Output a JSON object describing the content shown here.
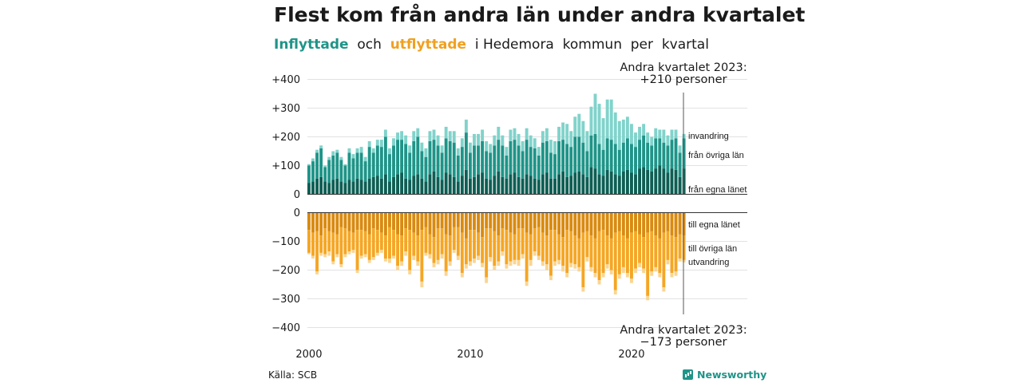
{
  "title": "Flest kom från andra län under andra kvartalet",
  "subtitle": {
    "part1": "Inflyttade",
    "part2": "och",
    "part3": "utflyttade",
    "part4": "i Hedemora  kommun  per  kvartal"
  },
  "annotations": {
    "top_line1": "Andra kvartalet 2023:",
    "top_line2": "+210 personer",
    "bottom_line1": "Andra kvartalet 2023:",
    "bottom_line2": "−173 personer"
  },
  "source": "Källa: SCB",
  "brand": "Newsworthy",
  "colors": {
    "in_egna": "#0e5e54",
    "in_ovriga": "#1f9488",
    "in_invandring": "#80d3cb",
    "out_egna": "#d98a10",
    "out_ovriga": "#f5a624",
    "out_utvandring": "#fad592",
    "grid": "#e2e2e2"
  },
  "chart_data": {
    "type": "bar",
    "stacked": true,
    "x_axis": {
      "ticks": [
        "2000",
        "2010",
        "2020"
      ]
    },
    "y_axis": {
      "inflow_ticks": [
        "+400",
        "+300",
        "+200",
        "+100",
        "0"
      ],
      "outflow_ticks": [
        "0",
        "−100",
        "−200",
        "−300",
        "−400"
      ],
      "inflow_range": [
        0,
        400
      ],
      "outflow_range": [
        -400,
        0
      ]
    },
    "legend": {
      "in_invandring": "invandring",
      "in_ovriga": "från övriga län",
      "in_egna": "från egna länet",
      "out_egna": "till egna länet",
      "out_ovriga": "till övriga län",
      "out_utvandring": "utvandring"
    },
    "period": {
      "start": "2000 Q1",
      "end": "2023 Q2",
      "quarters": 94
    },
    "inflow": {
      "egna": [
        40,
        45,
        55,
        60,
        45,
        40,
        50,
        55,
        45,
        40,
        50,
        45,
        55,
        50,
        45,
        55,
        60,
        65,
        55,
        70,
        45,
        60,
        70,
        75,
        55,
        50,
        65,
        70,
        55,
        45,
        70,
        80,
        60,
        50,
        75,
        70,
        60,
        45,
        65,
        85,
        55,
        60,
        70,
        75,
        55,
        50,
        65,
        80,
        60,
        55,
        70,
        75,
        60,
        55,
        70,
        65,
        55,
        50,
        70,
        75,
        55,
        55,
        70,
        80,
        60,
        65,
        75,
        80,
        70,
        60,
        95,
        90,
        70,
        65,
        85,
        80,
        70,
        65,
        80,
        85,
        75,
        70,
        90,
        95,
        85,
        80,
        90,
        100,
        90,
        75,
        90,
        85,
        60,
        90
      ],
      "ovriga": [
        60,
        70,
        90,
        100,
        50,
        80,
        85,
        90,
        75,
        60,
        95,
        80,
        90,
        95,
        70,
        110,
        85,
        105,
        110,
        130,
        95,
        110,
        120,
        115,
        120,
        95,
        120,
        130,
        95,
        85,
        115,
        110,
        110,
        95,
        120,
        115,
        120,
        90,
        100,
        130,
        90,
        110,
        100,
        110,
        95,
        95,
        105,
        110,
        110,
        80,
        115,
        115,
        110,
        95,
        120,
        100,
        105,
        85,
        110,
        110,
        90,
        85,
        115,
        110,
        115,
        100,
        125,
        120,
        110,
        90,
        110,
        120,
        105,
        90,
        110,
        110,
        105,
        90,
        100,
        110,
        100,
        95,
        100,
        110,
        95,
        90,
        105,
        95,
        90,
        95,
        100,
        110,
        85,
        105
      ],
      "invandring": [
        5,
        10,
        10,
        10,
        5,
        10,
        15,
        10,
        10,
        5,
        15,
        15,
        15,
        20,
        15,
        20,
        15,
        20,
        25,
        25,
        20,
        25,
        25,
        30,
        30,
        25,
        35,
        30,
        30,
        30,
        35,
        35,
        35,
        25,
        40,
        35,
        40,
        25,
        30,
        45,
        35,
        40,
        40,
        40,
        35,
        30,
        35,
        45,
        35,
        30,
        40,
        40,
        40,
        35,
        40,
        40,
        35,
        30,
        40,
        45,
        45,
        45,
        50,
        60,
        70,
        55,
        70,
        80,
        75,
        70,
        100,
        140,
        140,
        110,
        135,
        140,
        110,
        100,
        80,
        75,
        70,
        50,
        45,
        40,
        35,
        30,
        35,
        30,
        45,
        35,
        35,
        30,
        25,
        15
      ]
    },
    "outflow": {
      "egna": [
        60,
        70,
        65,
        80,
        55,
        65,
        70,
        75,
        50,
        55,
        65,
        70,
        60,
        60,
        65,
        75,
        55,
        60,
        70,
        80,
        50,
        60,
        75,
        80,
        55,
        60,
        70,
        80,
        60,
        50,
        75,
        85,
        55,
        55,
        75,
        80,
        50,
        50,
        70,
        90,
        60,
        60,
        70,
        85,
        55,
        55,
        65,
        80,
        55,
        60,
        70,
        75,
        55,
        55,
        70,
        75,
        55,
        50,
        70,
        80,
        60,
        60,
        75,
        85,
        60,
        65,
        80,
        90,
        70,
        65,
        80,
        90,
        65,
        60,
        80,
        90,
        70,
        65,
        80,
        90,
        70,
        65,
        75,
        85,
        70,
        65,
        80,
        90,
        70,
        65,
        80,
        85,
        75,
        80
      ],
      "ovriga": [
        80,
        80,
        140,
        60,
        90,
        70,
        100,
        70,
        130,
        90,
        70,
        60,
        140,
        90,
        80,
        90,
        100,
        80,
        60,
        80,
        110,
        90,
        110,
        90,
        80,
        140,
        80,
        90,
        180,
        90,
        70,
        90,
        110,
        90,
        130,
        90,
        80,
        100,
        140,
        90,
        110,
        100,
        80,
        90,
        170,
        100,
        120,
        90,
        80,
        120,
        100,
        90,
        110,
        90,
        170,
        90,
        80,
        100,
        100,
        100,
        160,
        110,
        90,
        100,
        150,
        110,
        100,
        100,
        190,
        90,
        110,
        120,
        170,
        150,
        100,
        110,
        200,
        150,
        110,
        120,
        160,
        130,
        100,
        110,
        220,
        140,
        110,
        120,
        190,
        100,
        130,
        120,
        85,
        85
      ],
      "utvandring": [
        5,
        10,
        10,
        10,
        10,
        15,
        10,
        10,
        10,
        10,
        10,
        10,
        10,
        10,
        10,
        10,
        10,
        10,
        10,
        10,
        15,
        10,
        15,
        15,
        15,
        15,
        15,
        15,
        20,
        10,
        15,
        15,
        15,
        15,
        15,
        15,
        10,
        15,
        15,
        15,
        15,
        15,
        15,
        15,
        20,
        15,
        15,
        15,
        15,
        15,
        15,
        15,
        20,
        15,
        15,
        20,
        15,
        15,
        15,
        20,
        15,
        15,
        15,
        20,
        15,
        15,
        15,
        15,
        15,
        15,
        15,
        15,
        15,
        15,
        15,
        15,
        15,
        15,
        20,
        15,
        15,
        15,
        15,
        15,
        15,
        15,
        15,
        15,
        15,
        15,
        15,
        15,
        10,
        8
      ]
    }
  }
}
